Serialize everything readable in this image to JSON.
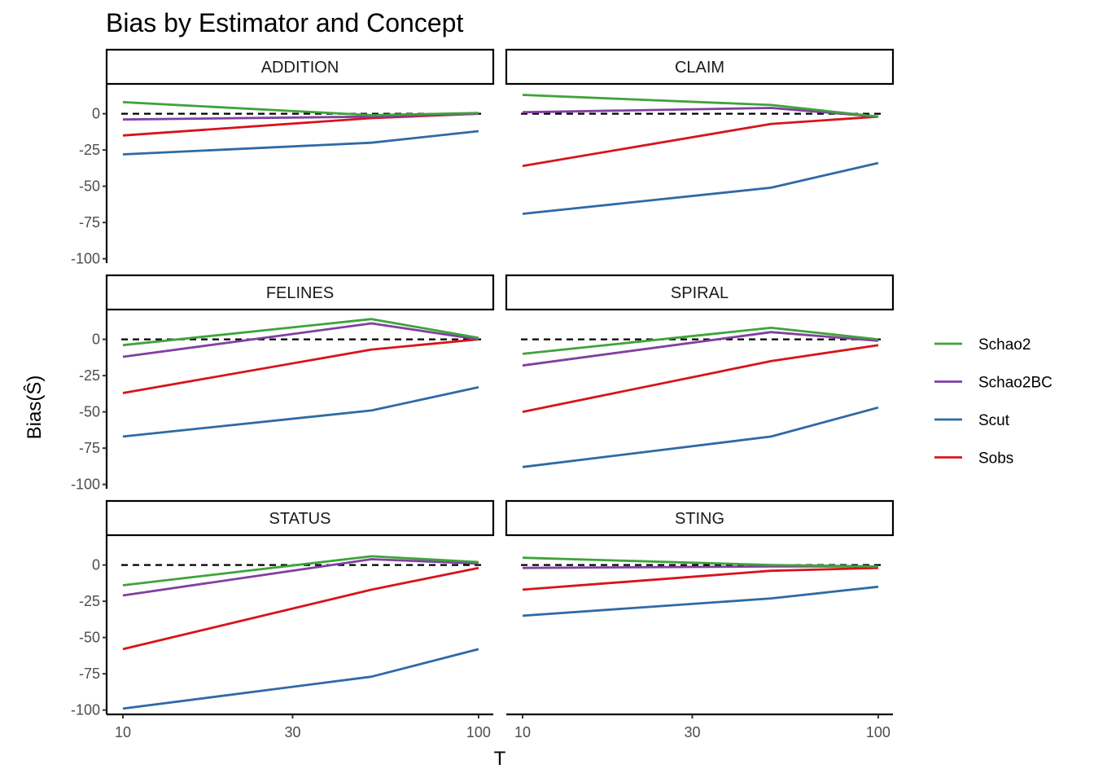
{
  "chart_data": {
    "type": "line",
    "title": "Bias by Estimator and Concept",
    "xlabel": "T",
    "ylabel": "Bias(Ŝ)",
    "x_scale": "log10",
    "xlim": [
      9,
      110
    ],
    "ylim": [
      -103,
      20
    ],
    "x_ticks": [
      10,
      30,
      100
    ],
    "x_tick_labels": [
      "10",
      "30",
      "100"
    ],
    "y_ticks": [
      0,
      -25,
      -50,
      -75,
      -100
    ],
    "y_tick_labels": [
      "0",
      "-25",
      "-50",
      "-75",
      "-100"
    ],
    "x": [
      10,
      50,
      100
    ],
    "reference_line": {
      "y": 0,
      "style": "dashed"
    },
    "grid": false,
    "legend_position": "right",
    "series_styles": [
      {
        "name": "Schao2",
        "color": "#3fa33b"
      },
      {
        "name": "Schao2BC",
        "color": "#8040a0"
      },
      {
        "name": "Scut",
        "color": "#2f6aa5"
      },
      {
        "name": "Sobs",
        "color": "#d7141c"
      }
    ],
    "draw_order": [
      "Scut",
      "Sobs",
      "Schao2BC",
      "Schao2"
    ],
    "panels": [
      {
        "label": "ADDITION",
        "series": [
          {
            "name": "Schao2",
            "values": [
              8,
              -1,
              0.5
            ]
          },
          {
            "name": "Schao2BC",
            "values": [
              -4,
              -2,
              0
            ]
          },
          {
            "name": "Scut",
            "values": [
              -28,
              -20,
              -12
            ]
          },
          {
            "name": "Sobs",
            "values": [
              -15,
              -3,
              0
            ]
          }
        ]
      },
      {
        "label": "CLAIM",
        "series": [
          {
            "name": "Schao2",
            "values": [
              13,
              6,
              -2
            ]
          },
          {
            "name": "Schao2BC",
            "values": [
              1,
              4,
              -2
            ]
          },
          {
            "name": "Scut",
            "values": [
              -69,
              -51,
              -34
            ]
          },
          {
            "name": "Sobs",
            "values": [
              -36,
              -7,
              -2
            ]
          }
        ]
      },
      {
        "label": "FELINES",
        "series": [
          {
            "name": "Schao2",
            "values": [
              -4,
              14,
              1
            ]
          },
          {
            "name": "Schao2BC",
            "values": [
              -12,
              11,
              0
            ]
          },
          {
            "name": "Scut",
            "values": [
              -67,
              -49,
              -33
            ]
          },
          {
            "name": "Sobs",
            "values": [
              -37,
              -7,
              0
            ]
          }
        ]
      },
      {
        "label": "SPIRAL",
        "series": [
          {
            "name": "Schao2",
            "values": [
              -10,
              8,
              0
            ]
          },
          {
            "name": "Schao2BC",
            "values": [
              -18,
              5,
              -1
            ]
          },
          {
            "name": "Scut",
            "values": [
              -88,
              -67,
              -47
            ]
          },
          {
            "name": "Sobs",
            "values": [
              -50,
              -15,
              -4
            ]
          }
        ]
      },
      {
        "label": "STATUS",
        "series": [
          {
            "name": "Schao2",
            "values": [
              -14,
              6,
              2
            ]
          },
          {
            "name": "Schao2BC",
            "values": [
              -21,
              4,
              1
            ]
          },
          {
            "name": "Scut",
            "values": [
              -99,
              -77,
              -58
            ]
          },
          {
            "name": "Sobs",
            "values": [
              -58,
              -17,
              -2
            ]
          }
        ]
      },
      {
        "label": "STING",
        "series": [
          {
            "name": "Schao2",
            "values": [
              5,
              0,
              -1
            ]
          },
          {
            "name": "Schao2BC",
            "values": [
              -2,
              -1,
              -1
            ]
          },
          {
            "name": "Scut",
            "values": [
              -35,
              -23,
              -15
            ]
          },
          {
            "name": "Sobs",
            "values": [
              -17,
              -4,
              -2
            ]
          }
        ]
      }
    ]
  }
}
